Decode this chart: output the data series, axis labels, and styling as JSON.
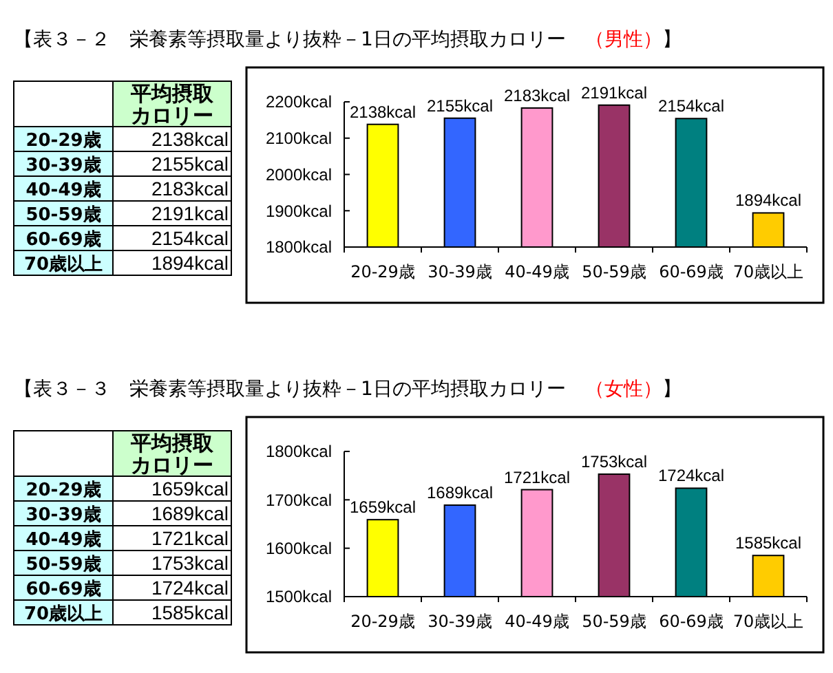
{
  "chart_data": [
    {
      "type": "bar",
      "title": "【表３－２　栄養素等摂取量より抜粋－1日の平均摂取カロリー　（男性）】",
      "ylabel": "平均摂取カロリー",
      "categories": [
        "20-29歳",
        "30-39歳",
        "40-49歳",
        "50-59歳",
        "60-69歳",
        "70歳以上"
      ],
      "values": [
        2138,
        2155,
        2183,
        2191,
        2154,
        1894
      ],
      "value_labels": [
        "2138kcal",
        "2155kcal",
        "2183kcal",
        "2191kcal",
        "2154kcal",
        "1894kcal"
      ],
      "colors": [
        "#ffff00",
        "#3366ff",
        "#ff99cc",
        "#993366",
        "#008080",
        "#ffcc00"
      ],
      "ylim": [
        1800,
        2200
      ],
      "yticks": [
        {
          "value": 1800,
          "label": "1800kcal"
        },
        {
          "value": 1900,
          "label": "1900kcal"
        },
        {
          "value": 2000,
          "label": "2000kcal"
        },
        {
          "value": 2100,
          "label": "2100kcal"
        },
        {
          "value": 2200,
          "label": "2200kcal"
        }
      ]
    },
    {
      "type": "bar",
      "title": "【表３－３　栄養素等摂取量より抜粋－1日の平均摂取カロリー　（女性）】",
      "ylabel": "平均摂取カロリー",
      "categories": [
        "20-29歳",
        "30-39歳",
        "40-49歳",
        "50-59歳",
        "60-69歳",
        "70歳以上"
      ],
      "values": [
        1659,
        1689,
        1721,
        1753,
        1724,
        1585
      ],
      "value_labels": [
        "1659kcal",
        "1689kcal",
        "1721kcal",
        "1753kcal",
        "1724kcal",
        "1585kcal"
      ],
      "colors": [
        "#ffff00",
        "#3366ff",
        "#ff99cc",
        "#993366",
        "#008080",
        "#ffcc00"
      ],
      "ylim": [
        1500,
        1800
      ],
      "yticks": [
        {
          "value": 1500,
          "label": "1500kcal"
        },
        {
          "value": 1600,
          "label": "1600kcal"
        },
        {
          "value": 1700,
          "label": "1700kcal"
        },
        {
          "value": 1800,
          "label": "1800kcal"
        }
      ]
    }
  ]
}
